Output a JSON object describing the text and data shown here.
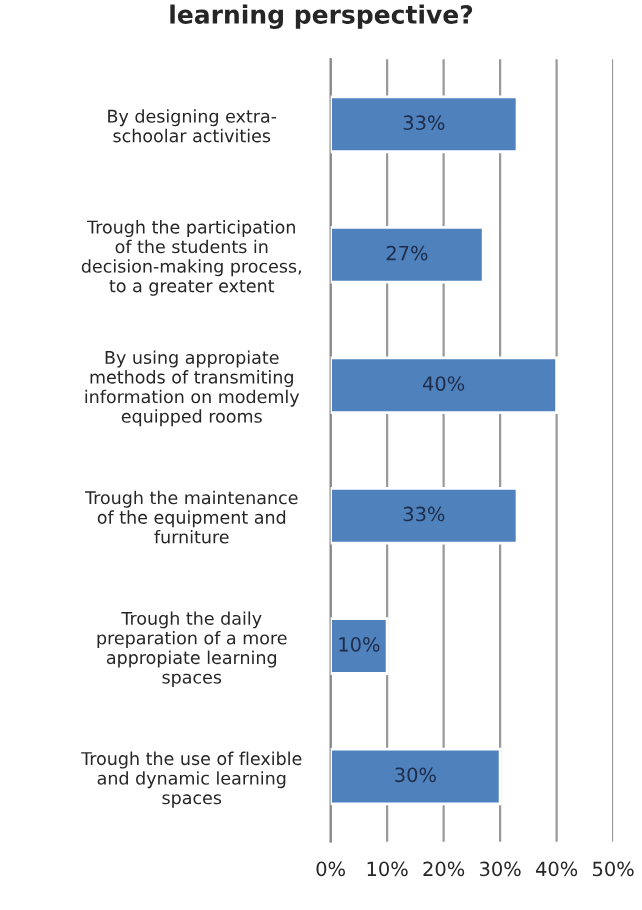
{
  "chart_data": {
    "type": "bar",
    "orientation": "horizontal",
    "title": "learning perspective?",
    "categories": [
      "By designing extra-\nschoolar activities",
      "Trough the participation\nof the students in\ndecision-making process,\nto a greater extent",
      "By using appropiate\nmethods of transmiting\ninformation on modemly\nequipped rooms",
      "Trough the maintenance\nof the equipment and\nfurniture",
      "Trough the daily\npreparation of a more\nappropiate learning\nspaces",
      "Trough the use of flexible\nand dynamic learning\nspaces"
    ],
    "values": [
      33,
      27,
      40,
      33,
      10,
      30
    ],
    "value_labels": [
      "33%",
      "27%",
      "40%",
      "33%",
      "10%",
      "30%"
    ],
    "color": "#4f81bd",
    "xlim": [
      0,
      50
    ],
    "xticks": [
      {
        "value": 0,
        "label": "0%"
      },
      {
        "value": 10,
        "label": "10%"
      },
      {
        "value": 20,
        "label": "20%"
      },
      {
        "value": 30,
        "label": "30%"
      },
      {
        "value": 40,
        "label": "40%"
      },
      {
        "value": 50,
        "label": "50%"
      }
    ],
    "grid": "x"
  }
}
